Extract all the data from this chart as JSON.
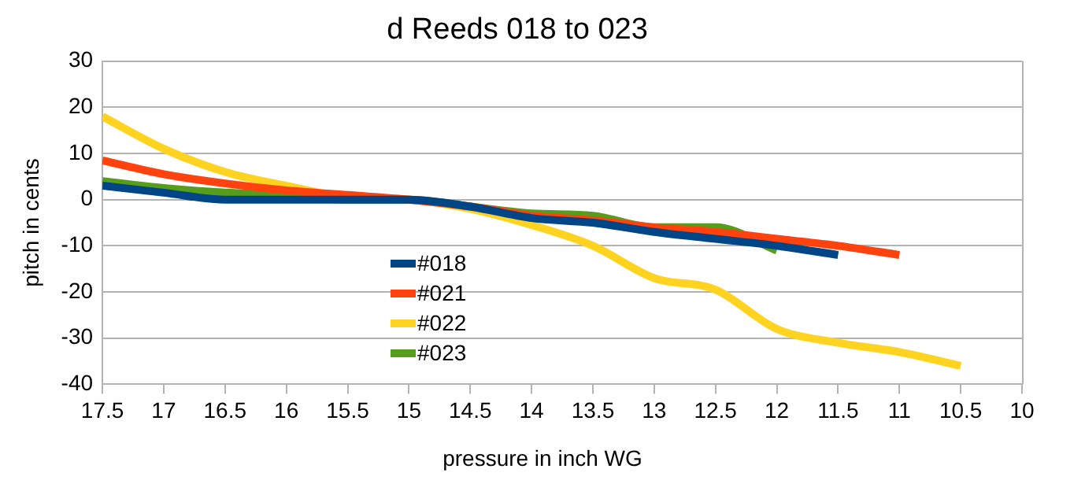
{
  "chart_data": {
    "type": "line",
    "title": "d Reeds 018 to 023",
    "xlabel": "pressure in inch WG",
    "ylabel": "pitch in cents",
    "x": [
      17.5,
      17,
      16.5,
      16,
      15.5,
      15,
      14.5,
      14,
      13.5,
      13,
      12.5,
      12,
      11.5,
      11,
      10.5
    ],
    "series": [
      {
        "name": "#018",
        "color": "#004586",
        "values": [
          3,
          1.5,
          0,
          0,
          0,
          0,
          -1.5,
          -4,
          -5,
          -7,
          -8.5,
          -10,
          -12,
          null,
          null
        ]
      },
      {
        "name": "#021",
        "color": "#ff420e",
        "values": [
          8.5,
          5.5,
          3.5,
          2,
          1,
          0,
          -1.5,
          -3.5,
          -4.5,
          -6,
          -7,
          -8.5,
          -10,
          -12,
          null
        ]
      },
      {
        "name": "#022",
        "color": "#ffd320",
        "values": [
          18,
          11,
          6,
          3,
          0.5,
          0,
          -2,
          -5.5,
          -10,
          -17,
          -19.5,
          -28,
          -31,
          -33,
          -36
        ]
      },
      {
        "name": "#023",
        "color": "#579d1c",
        "values": [
          4,
          2.5,
          1.5,
          1,
          0,
          0,
          -1.5,
          -3,
          -3.5,
          -6,
          -6,
          -11,
          null,
          null,
          null
        ]
      }
    ],
    "xlim": [
      17.5,
      10
    ],
    "xticks": [
      17.5,
      17,
      16.5,
      16,
      15.5,
      15,
      14.5,
      14,
      13.5,
      13,
      12.5,
      12,
      11.5,
      11,
      10.5,
      10
    ],
    "ylim": [
      -40,
      30
    ],
    "yticks": [
      -40,
      -30,
      -20,
      -10,
      0,
      10,
      20,
      30
    ],
    "grid": "y",
    "legend": "bottom left",
    "marker": "none",
    "line_style": "solid"
  }
}
